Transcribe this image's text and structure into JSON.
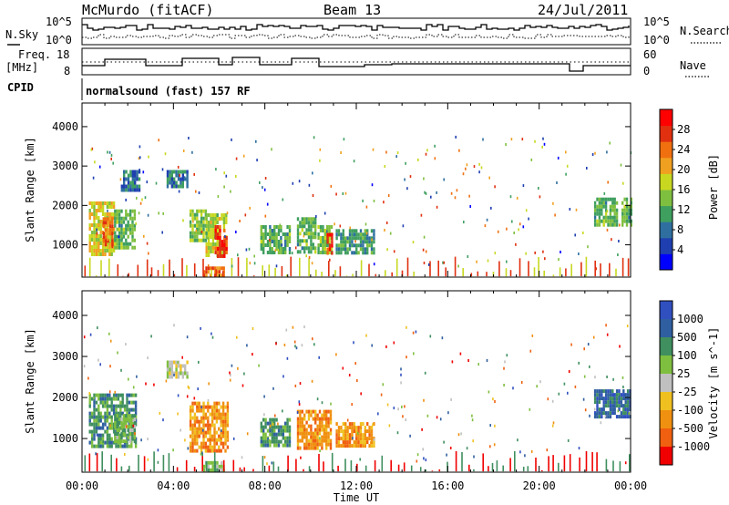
{
  "header": {
    "station": "McMurdo (fitACF)",
    "beam": "Beam 13",
    "date": "24/Jul/2011"
  },
  "summary_panels": {
    "noise": {
      "left_label_top": "N.Sky",
      "right_label": "N.Search",
      "left_ticks": [
        "10^5",
        "10^0"
      ],
      "right_ticks": [
        "10^5",
        "10^0"
      ]
    },
    "freq": {
      "left_label_top": "Freq.",
      "left_label_bottom": "[MHz]",
      "right_label": "Nave",
      "left_ticks": [
        "18",
        "8"
      ],
      "right_ticks": [
        "60",
        "0"
      ]
    },
    "cpid": {
      "label": "CPID",
      "text": "normalsound (fast) 157 RF"
    }
  },
  "colors": {
    "power_scale": [
      "#0000ff",
      "#1f3fb0",
      "#2f6fa0",
      "#3f9f5f",
      "#7fbf3f",
      "#c8d820",
      "#f0a020",
      "#f07010",
      "#e03010",
      "#ff0000"
    ],
    "velocity_scale": [
      "#3050c0",
      "#2f5fa0",
      "#3f8f5f",
      "#7fbf3f",
      "#c0c0c0",
      "#f0c020",
      "#f09010",
      "#f06010",
      "#f00000"
    ]
  },
  "chart_data": [
    {
      "type": "heatmap",
      "name": "power",
      "xlabel": "",
      "ylabel": "Slant Range [km]",
      "xlim": [
        0,
        24
      ],
      "ylim": [
        180,
        4600
      ],
      "yticks": [
        1000,
        2000,
        3000,
        4000
      ],
      "colorbar": {
        "label": "Power [dB]",
        "range": [
          0,
          32
        ],
        "ticks": [
          "28",
          "24",
          "20",
          "16",
          "12",
          "8",
          "4"
        ]
      },
      "regions": [
        {
          "t0": 0.3,
          "t1": 1.4,
          "r0": 800,
          "r1": 2100,
          "v": 18
        },
        {
          "t0": 0.9,
          "t1": 1.3,
          "r0": 1000,
          "r1": 1700,
          "v": 26
        },
        {
          "t0": 1.4,
          "t1": 2.3,
          "r0": 900,
          "r1": 1900,
          "v": 12
        },
        {
          "t0": 1.7,
          "t1": 2.5,
          "r0": 2400,
          "r1": 2900,
          "v": 7
        },
        {
          "t0": 3.7,
          "t1": 4.6,
          "r0": 2500,
          "r1": 2900,
          "v": 7
        },
        {
          "t0": 4.7,
          "t1": 5.4,
          "r0": 1100,
          "r1": 1900,
          "v": 14
        },
        {
          "t0": 5.4,
          "t1": 6.3,
          "r0": 700,
          "r1": 1800,
          "v": 16
        },
        {
          "t0": 5.8,
          "t1": 6.3,
          "r0": 700,
          "r1": 1500,
          "v": 28
        },
        {
          "t0": 5.3,
          "t1": 6.2,
          "r0": 200,
          "r1": 450,
          "v": 25
        },
        {
          "t0": 7.8,
          "t1": 9.1,
          "r0": 850,
          "r1": 1500,
          "v": 12
        },
        {
          "t0": 9.4,
          "t1": 10.2,
          "r0": 800,
          "r1": 1700,
          "v": 12
        },
        {
          "t0": 10.3,
          "t1": 10.9,
          "r0": 800,
          "r1": 1500,
          "v": 14
        },
        {
          "t0": 10.7,
          "t1": 10.95,
          "r0": 800,
          "r1": 1300,
          "v": 28
        },
        {
          "t0": 11.1,
          "t1": 12.8,
          "r0": 800,
          "r1": 1400,
          "v": 10
        },
        {
          "t0": 22.4,
          "t1": 23.4,
          "r0": 1500,
          "r1": 2200,
          "v": 12
        },
        {
          "t0": 23.6,
          "t1": 24.0,
          "r0": 1500,
          "r1": 2200,
          "v": 12
        }
      ]
    },
    {
      "type": "heatmap",
      "name": "velocity",
      "xlabel": "Time UT",
      "ylabel": "Slant Range [km]",
      "xlim": [
        0,
        24
      ],
      "ylim": [
        180,
        4600
      ],
      "yticks": [
        1000,
        2000,
        3000,
        4000
      ],
      "xticks": [
        "00:00",
        "04:00",
        "08:00",
        "12:00",
        "16:00",
        "20:00",
        "00:00"
      ],
      "colorbar": {
        "label": "Velocity [m s^-1]",
        "ticks": [
          "1000",
          "500",
          "100",
          "25",
          "-25",
          "-100",
          "-500",
          "-1000"
        ]
      },
      "regions": [
        {
          "t0": 0.3,
          "t1": 2.4,
          "r0": 800,
          "r1": 2100,
          "v": 2
        },
        {
          "t0": 1.4,
          "t1": 2.3,
          "r0": 900,
          "r1": 1600,
          "v": 3
        },
        {
          "t0": 3.7,
          "t1": 4.6,
          "r0": 2500,
          "r1": 2900,
          "v": 4
        },
        {
          "t0": 4.7,
          "t1": 6.4,
          "r0": 700,
          "r1": 1900,
          "v": 6
        },
        {
          "t0": 5.3,
          "t1": 6.2,
          "r0": 200,
          "r1": 450,
          "v": 3
        },
        {
          "t0": 7.8,
          "t1": 9.1,
          "r0": 850,
          "r1": 1500,
          "v": 2
        },
        {
          "t0": 9.4,
          "t1": 10.9,
          "r0": 800,
          "r1": 1700,
          "v": 6
        },
        {
          "t0": 11.1,
          "t1": 12.8,
          "r0": 800,
          "r1": 1400,
          "v": 6
        },
        {
          "t0": 22.4,
          "t1": 24.0,
          "r0": 1500,
          "r1": 2200,
          "v": 1
        }
      ]
    }
  ]
}
